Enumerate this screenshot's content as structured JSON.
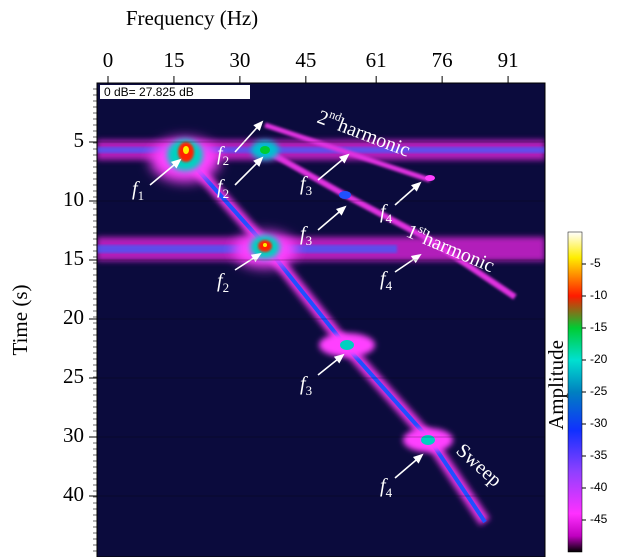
{
  "chart_data": {
    "type": "spectrogram",
    "title": "Frequency (Hz)",
    "ylabel": "Time (s)",
    "colorbar_label": "Amplitude",
    "header": "0 dB= 27.825 dB",
    "xlim": [
      -2.5,
      99.4
    ],
    "xticks": [
      0,
      15,
      30,
      45,
      61,
      76,
      91
    ],
    "yticks": [
      5,
      10,
      15,
      20,
      25,
      30,
      40
    ],
    "clim": [
      -50,
      0
    ],
    "cticks": [
      -5,
      -10,
      -15,
      -20,
      -25,
      -30,
      -35,
      -40,
      -45
    ],
    "annotations": [
      {
        "text": "2",
        "sup": "nd",
        "rest": "harmonic"
      },
      {
        "text": "1",
        "sup": "st",
        "rest": "harmonic"
      },
      {
        "text": "Sweep"
      },
      {
        "text": "f",
        "sub": "1"
      },
      {
        "text": "f",
        "sub": "2"
      },
      {
        "text": "f",
        "sub": "2"
      },
      {
        "text": "f",
        "sub": "2"
      },
      {
        "text": "f",
        "sub": "3"
      },
      {
        "text": "f",
        "sub": "3"
      },
      {
        "text": "f",
        "sub": "3"
      },
      {
        "text": "f",
        "sub": "4"
      },
      {
        "text": "f",
        "sub": "4"
      },
      {
        "text": "f",
        "sub": "4"
      }
    ]
  }
}
